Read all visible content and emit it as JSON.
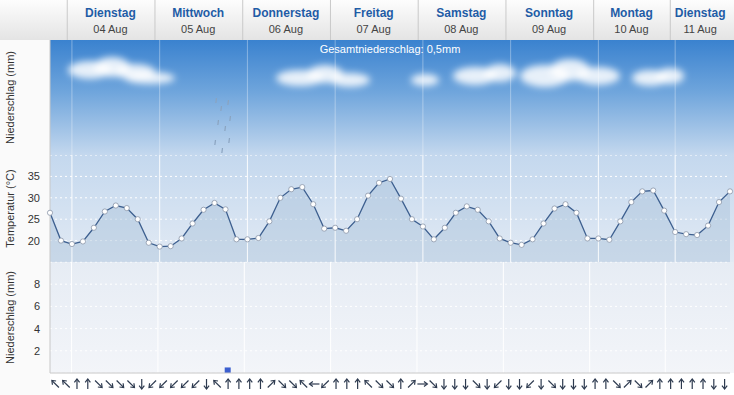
{
  "chart_data": [
    {
      "type": "area",
      "ylabel": "Temperatur (°C)",
      "categories": [
        null,
        null,
        null,
        null,
        null,
        null,
        "Dienstag 04 Aug",
        null,
        null,
        null,
        null,
        null,
        null,
        null,
        "Mittwoch 05 Aug",
        null,
        null,
        null,
        null,
        null,
        null,
        null,
        "Donnerstag 06 Aug",
        null,
        null,
        null,
        null,
        null,
        null,
        null,
        "Freitag 07 Aug",
        null,
        null,
        null,
        null,
        null,
        null,
        null,
        "Samstag 08 Aug",
        null,
        null,
        null,
        null,
        null,
        null,
        null,
        "Sonntag 09 Aug",
        null,
        null,
        null,
        null,
        null,
        null,
        null,
        "Montag 10 Aug",
        null,
        null,
        null,
        null,
        null,
        "Dienstag 11 Aug",
        null,
        null
      ],
      "values": [
        26.5,
        20.0,
        19.2,
        19.8,
        23.0,
        26.8,
        28.2,
        27.6,
        25.0,
        19.5,
        18.6,
        18.7,
        20.5,
        24.0,
        27.2,
        28.8,
        27.3,
        20.3,
        20.3,
        20.6,
        24.5,
        30.0,
        32.0,
        32.5,
        28.5,
        22.8,
        23.0,
        22.3,
        25.0,
        30.5,
        33.5,
        34.4,
        29.8,
        25.0,
        23.3,
        20.3,
        23.0,
        26.5,
        28.0,
        27.2,
        24.5,
        20.5,
        19.5,
        19.0,
        20.3,
        24.0,
        27.5,
        28.5,
        26.5,
        20.5,
        20.5,
        20.2,
        24.5,
        29.0,
        31.5,
        31.7,
        27.0,
        22.0,
        21.5,
        21.3,
        23.5,
        29.0,
        31.5
      ],
      "color": "#3d5f8f",
      "marker": "o",
      "ylim": [
        15,
        40
      ],
      "yticks": [
        20,
        25,
        30,
        35
      ],
      "grid": true
    },
    {
      "type": "bar",
      "ylabel": "Niederschlag (mm)",
      "categories": [
        null,
        null,
        null,
        null,
        null,
        null,
        "Dienstag 04 Aug",
        null,
        null,
        null,
        null,
        null,
        null,
        null,
        "Mittwoch 05 Aug",
        null,
        null,
        null,
        null,
        null,
        null,
        null,
        "Donnerstag 06 Aug",
        null,
        null,
        null,
        null,
        null,
        null,
        null,
        "Freitag 07 Aug",
        null,
        null,
        null,
        null,
        null,
        null,
        null,
        "Samstag 08 Aug",
        null,
        null,
        null,
        null,
        null,
        null,
        null,
        "Sonntag 09 Aug",
        null,
        null,
        null,
        null,
        null,
        null,
        null,
        "Montag 10 Aug",
        null,
        null,
        null,
        null,
        null,
        "Dienstag 11 Aug",
        null,
        null
      ],
      "values": [
        0,
        0,
        0,
        0,
        0,
        0,
        0,
        0,
        0,
        0,
        0,
        0,
        0,
        0,
        0,
        0,
        0.5,
        0,
        0,
        0,
        0,
        0,
        0,
        0,
        0,
        0,
        0,
        0,
        0,
        0,
        0,
        0,
        0,
        0,
        0,
        0,
        0,
        0,
        0,
        0,
        0,
        0,
        0,
        0,
        0,
        0,
        0,
        0,
        0,
        0,
        0,
        0,
        0,
        0,
        0,
        0,
        0,
        0,
        0,
        0,
        0,
        0,
        0
      ],
      "color": "#3c5fcf",
      "ylim": [
        0,
        10
      ],
      "yticks": [
        2,
        4,
        6,
        8
      ],
      "grid": true
    }
  ],
  "sky_panel": {
    "ylabel": "Niederschlag (mm)",
    "annotation": "Gesamtniederschlag: 0,5mm"
  },
  "wind_direction": [
    315,
    315,
    0,
    0,
    135,
    135,
    135,
    135,
    180,
    225,
    225,
    225,
    225,
    225,
    180,
    315,
    0,
    0,
    0,
    0,
    45,
    135,
    135,
    315,
    270,
    225,
    0,
    0,
    0,
    315,
    135,
    135,
    0,
    45,
    90,
    135,
    180,
    180,
    180,
    135,
    180,
    225,
    180,
    180,
    225,
    180,
    135,
    180,
    180,
    180,
    0,
    0,
    135,
    45,
    135,
    45,
    0,
    0,
    0,
    0,
    0,
    180,
    180
  ]
}
